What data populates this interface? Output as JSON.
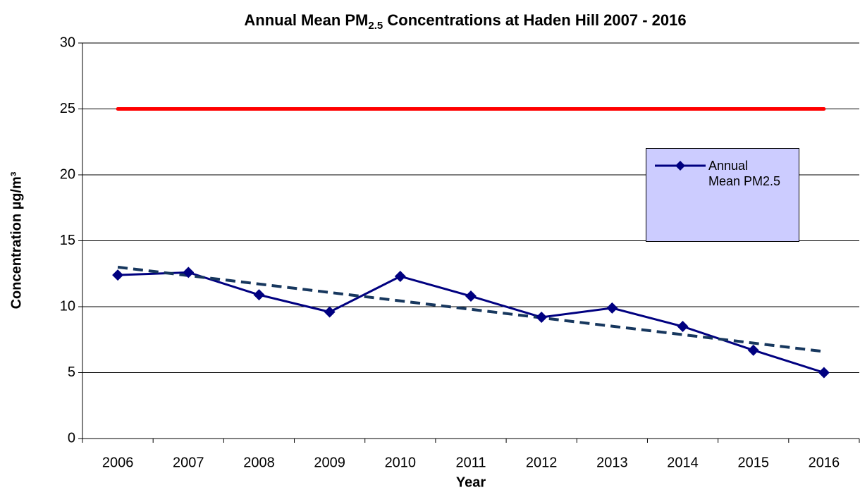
{
  "chart_data": {
    "type": "line",
    "title": [
      "Annual Mean PM",
      "2.5",
      " Concentrations at Haden Hill 2007 - 2016"
    ],
    "x_label": "Year",
    "y_label": "Concentration  µg/m³",
    "categories": [
      "2006",
      "2007",
      "2008",
      "2009",
      "2010",
      "2011",
      "2012",
      "2013",
      "2014",
      "2015",
      "2016"
    ],
    "series": [
      {
        "name": "Annual Mean PM2.5",
        "color": "#000080",
        "values": [
          12.4,
          12.6,
          10.9,
          9.6,
          12.3,
          10.8,
          9.2,
          9.9,
          8.5,
          6.7,
          5.0
        ]
      }
    ],
    "reference_line": {
      "value": 25,
      "color": "#ff0000"
    },
    "trendline": {
      "color": "#17375e",
      "values": [
        13.0,
        6.6
      ]
    },
    "ylim": [
      0,
      30
    ],
    "yticks": [
      0,
      5,
      10,
      15,
      20,
      25,
      30
    ],
    "grid": true,
    "legend": "right"
  }
}
